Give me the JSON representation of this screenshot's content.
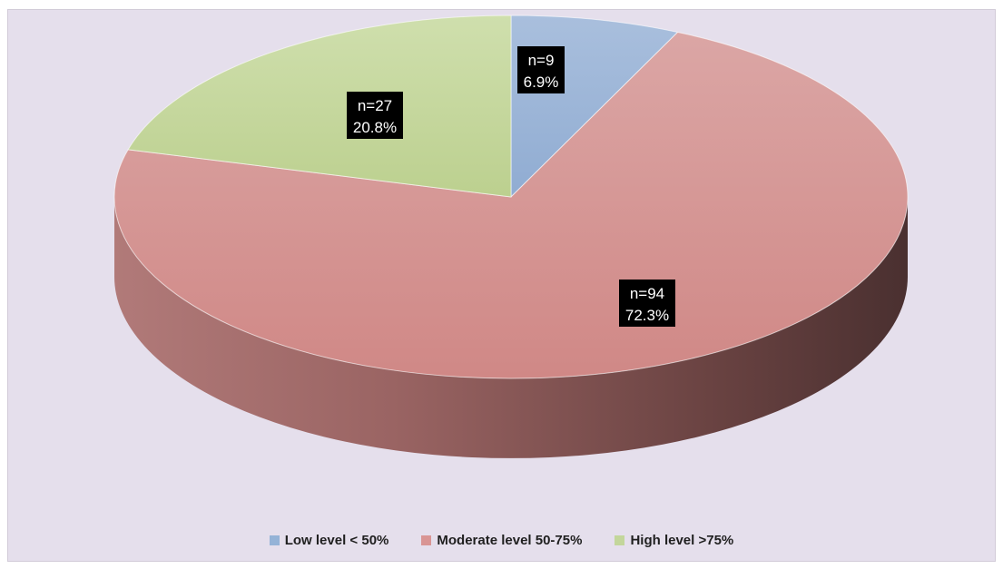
{
  "chart_data": {
    "type": "pie",
    "title": "",
    "legend_position": "bottom",
    "slices": [
      {
        "name": "Low level < 50%",
        "n_label": "n=9",
        "value": 6.9,
        "pct_label": "6.9%",
        "color": "#95b3d7"
      },
      {
        "name": "Moderate level 50-75%",
        "n_label": "n=94",
        "value": 72.3,
        "pct_label": "72.3%",
        "color": "#d99594"
      },
      {
        "name": "High level >75%",
        "n_label": "n=27",
        "value": 20.8,
        "pct_label": "20.8%",
        "color": "#c3d69b"
      }
    ]
  },
  "colors": {
    "background": "#e5dfec",
    "label_box": "#000000",
    "label_text": "#ffffff"
  }
}
